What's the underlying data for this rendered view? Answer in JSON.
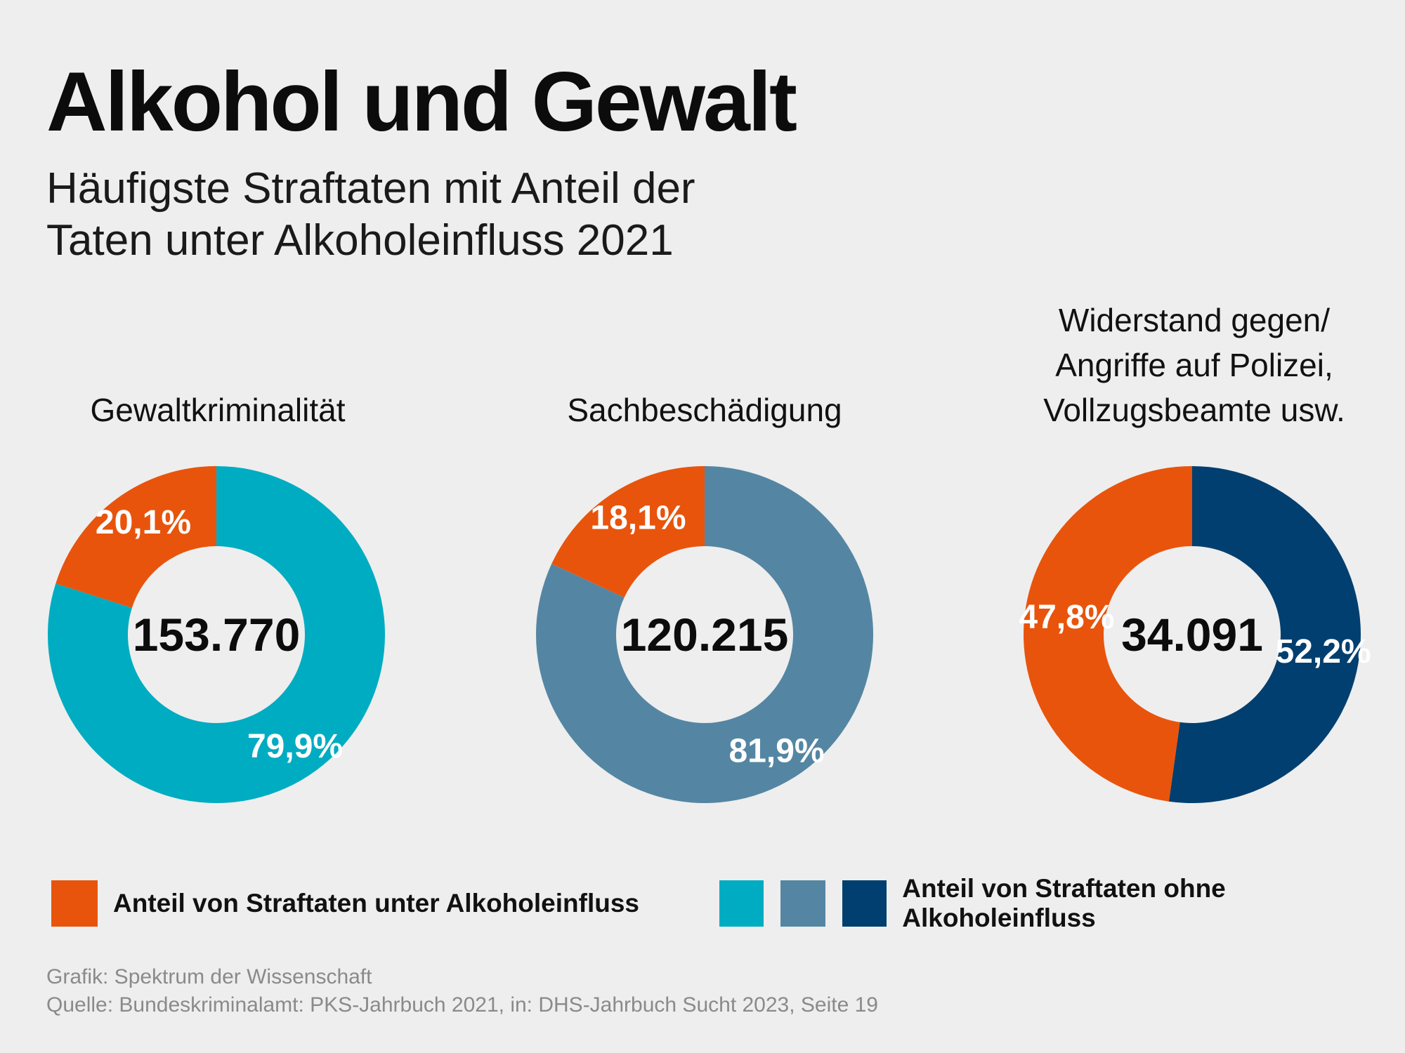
{
  "title": "Alkohol und Gewalt",
  "subtitle": {
    "line1": "Häufigste Straftaten mit Anteil der",
    "line2": "Taten unter Alkoholeinfluss 2021"
  },
  "colors": {
    "background": "#eeeeee",
    "alcohol": "#e8540c",
    "non_alcohol_1": "#00acc1",
    "non_alcohol_2": "#5486a3",
    "non_alcohol_3": "#003f6f"
  },
  "chart_data": [
    {
      "type": "pie",
      "style": "donut",
      "title_lines": [
        "Gewaltkriminalität"
      ],
      "total_label": "153.770",
      "total": 153770,
      "categories": [
        "Anteil von Straftaten unter Alkoholeinfluss",
        "Anteil von Straftaten ohne Alkoholeinfluss"
      ],
      "values": [
        20.1,
        79.9
      ],
      "value_labels": [
        "20,1%",
        "79,9%"
      ],
      "colors": [
        "#e8540c",
        "#00acc1"
      ]
    },
    {
      "type": "pie",
      "style": "donut",
      "title_lines": [
        "Sachbeschädigung"
      ],
      "total_label": "120.215",
      "total": 120215,
      "categories": [
        "Anteil von Straftaten unter Alkoholeinfluss",
        "Anteil von Straftaten ohne Alkoholeinfluss"
      ],
      "values": [
        18.1,
        81.9
      ],
      "value_labels": [
        "18,1%",
        "81,9%"
      ],
      "colors": [
        "#e8540c",
        "#5486a3"
      ]
    },
    {
      "type": "pie",
      "style": "donut",
      "title_lines": [
        "Widerstand gegen/",
        "Angriffe auf Polizei,",
        "Vollzugsbeamte usw."
      ],
      "total_label": "34.091",
      "total": 34091,
      "categories": [
        "Anteil von Straftaten unter Alkoholeinfluss",
        "Anteil von Straftaten ohne Alkoholeinfluss"
      ],
      "values": [
        47.8,
        52.2
      ],
      "value_labels": [
        "47,8%",
        "52,2%"
      ],
      "colors": [
        "#e8540c",
        "#003f6f"
      ]
    }
  ],
  "legend": {
    "alcohol_label": "Anteil von Straftaten unter Alkoholeinfluss",
    "non_alcohol_label": "Anteil von Straftaten ohne Alkoholeinfluss"
  },
  "footer": {
    "line1": "Grafik: Spektrum der Wissenschaft",
    "line2": "Quelle: Bundeskriminalamt: PKS-Jahrbuch 2021, in: DHS-Jahrbuch Sucht 2023, Seite 19"
  }
}
